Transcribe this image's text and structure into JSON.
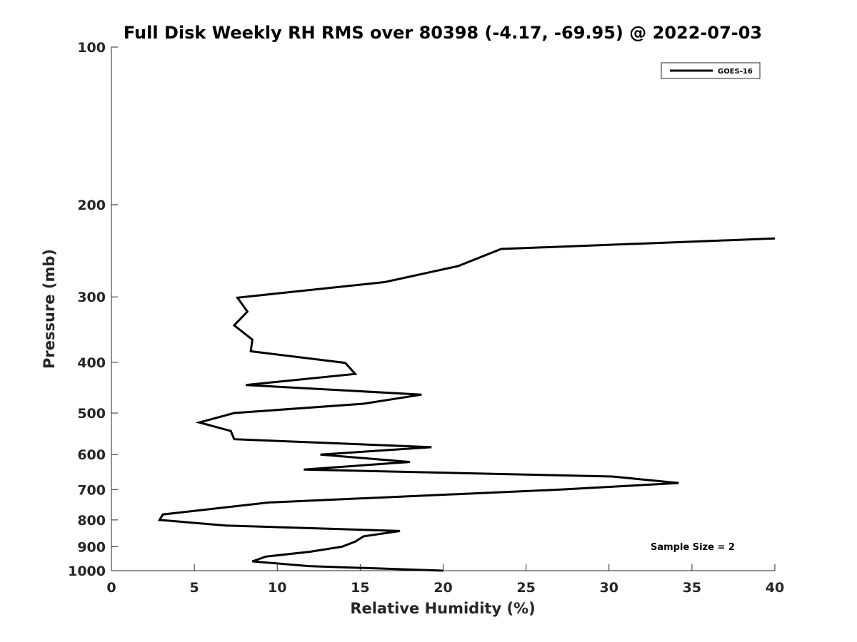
{
  "chart_data": {
    "type": "line",
    "title": "Full Disk Weekly RH RMS over 80398 (-4.17, -69.95) @ 2022-07-03",
    "xlabel": "Relative Humidity (%)",
    "ylabel": "Pressure (mb)",
    "xlim": [
      0,
      40
    ],
    "ylim": [
      100,
      1000
    ],
    "yscale": "log",
    "y_reversed": true,
    "grid": false,
    "legend_position": "top-right",
    "x_ticks": [
      "0",
      "5",
      "10",
      "15",
      "20",
      "25",
      "30",
      "35",
      "40"
    ],
    "x_tick_values": [
      0,
      5,
      10,
      15,
      20,
      25,
      30,
      35,
      40
    ],
    "y_ticks": [
      "100",
      "200",
      "300",
      "400",
      "500",
      "600",
      "700",
      "800",
      "900",
      "1000"
    ],
    "y_tick_values": [
      100,
      200,
      300,
      400,
      500,
      600,
      700,
      800,
      900,
      1000
    ],
    "series": [
      {
        "name": "GOES-16",
        "color": "#000000",
        "points": [
          {
            "x": 40.0,
            "y": 232
          },
          {
            "x": 23.5,
            "y": 243
          },
          {
            "x": 20.9,
            "y": 262
          },
          {
            "x": 16.5,
            "y": 281
          },
          {
            "x": 7.6,
            "y": 301
          },
          {
            "x": 8.2,
            "y": 320
          },
          {
            "x": 7.4,
            "y": 340
          },
          {
            "x": 8.5,
            "y": 362
          },
          {
            "x": 8.4,
            "y": 381
          },
          {
            "x": 14.1,
            "y": 401
          },
          {
            "x": 14.7,
            "y": 421
          },
          {
            "x": 8.1,
            "y": 442
          },
          {
            "x": 18.7,
            "y": 461
          },
          {
            "x": 15.2,
            "y": 480
          },
          {
            "x": 7.4,
            "y": 500
          },
          {
            "x": 5.3,
            "y": 521
          },
          {
            "x": 7.2,
            "y": 541
          },
          {
            "x": 7.4,
            "y": 561
          },
          {
            "x": 19.3,
            "y": 581
          },
          {
            "x": 12.6,
            "y": 600
          },
          {
            "x": 18.0,
            "y": 620
          },
          {
            "x": 11.6,
            "y": 641
          },
          {
            "x": 30.2,
            "y": 661
          },
          {
            "x": 34.2,
            "y": 680
          },
          {
            "x": 27.1,
            "y": 700
          },
          {
            "x": 9.5,
            "y": 741
          },
          {
            "x": 3.1,
            "y": 781
          },
          {
            "x": 2.9,
            "y": 800
          },
          {
            "x": 6.9,
            "y": 820
          },
          {
            "x": 17.4,
            "y": 840
          },
          {
            "x": 15.2,
            "y": 860
          },
          {
            "x": 14.7,
            "y": 880
          },
          {
            "x": 13.9,
            "y": 900
          },
          {
            "x": 12.0,
            "y": 920
          },
          {
            "x": 9.3,
            "y": 940
          },
          {
            "x": 8.5,
            "y": 960
          },
          {
            "x": 11.9,
            "y": 980
          },
          {
            "x": 20.0,
            "y": 1000
          }
        ]
      }
    ],
    "legend": {
      "entries": [
        "GOES-16"
      ]
    },
    "annotations": [
      {
        "text": "Sample Size = 2",
        "position": "bottom-right"
      }
    ]
  }
}
